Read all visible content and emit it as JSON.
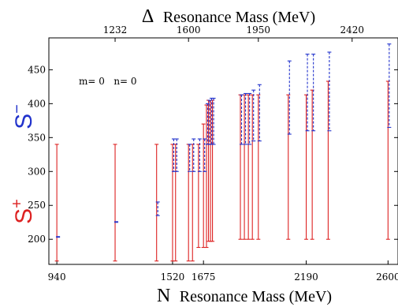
{
  "chart_data": {
    "type": "errorbar",
    "top_axis_title": {
      "symbol": "Δ",
      "text": "Resonance Mass (MeV)"
    },
    "bottom_axis_title": {
      "symbol": "N",
      "text": "Resonance Mass (MeV)"
    },
    "ylabel_plus": {
      "base": "S",
      "sup": "+"
    },
    "ylabel_minus": {
      "base": "S",
      "sup": "−"
    },
    "annotation": "m= 0   n= 0",
    "xlim": [
      900,
      2650
    ],
    "ylim": [
      163,
      497
    ],
    "bottom_ticks": [
      940,
      1520,
      1675,
      2190,
      2600
    ],
    "top_ticks": [
      1232,
      1600,
      1950,
      2420
    ],
    "y_ticks": [
      200,
      250,
      300,
      350,
      400,
      450
    ],
    "colors": {
      "plus": "#dd2222",
      "minus": "#2233cc",
      "axes": "#000000"
    },
    "series": [
      {
        "name": "S+",
        "style": "solid",
        "bars": [
          {
            "x": 940,
            "low": 168,
            "high": 340
          },
          {
            "x": 1232,
            "low": 168,
            "high": 340
          },
          {
            "x": 1440,
            "low": 168,
            "high": 340
          },
          {
            "x": 1520,
            "low": 168,
            "high": 340
          },
          {
            "x": 1535,
            "low": 168,
            "high": 340
          },
          {
            "x": 1600,
            "low": 168,
            "high": 340
          },
          {
            "x": 1620,
            "low": 168,
            "high": 340
          },
          {
            "x": 1650,
            "low": 188,
            "high": 340
          },
          {
            "x": 1675,
            "low": 188,
            "high": 370
          },
          {
            "x": 1690,
            "low": 188,
            "high": 398
          },
          {
            "x": 1700,
            "low": 197,
            "high": 405
          },
          {
            "x": 1710,
            "low": 197,
            "high": 405
          },
          {
            "x": 1720,
            "low": 197,
            "high": 405
          },
          {
            "x": 1860,
            "low": 200,
            "high": 413
          },
          {
            "x": 1880,
            "low": 200,
            "high": 413
          },
          {
            "x": 1900,
            "low": 200,
            "high": 413
          },
          {
            "x": 1920,
            "low": 200,
            "high": 413
          },
          {
            "x": 1950,
            "low": 200,
            "high": 413
          },
          {
            "x": 2100,
            "low": 200,
            "high": 413
          },
          {
            "x": 2190,
            "low": 200,
            "high": 413
          },
          {
            "x": 2220,
            "low": 200,
            "high": 420
          },
          {
            "x": 2300,
            "low": 200,
            "high": 433
          },
          {
            "x": 2600,
            "low": 200,
            "high": 433
          }
        ]
      },
      {
        "name": "S−",
        "style": "dashed",
        "bars": [
          {
            "x": 940,
            "low": 203,
            "high": 204
          },
          {
            "x": 1232,
            "low": 225,
            "high": 226
          },
          {
            "x": 1440,
            "low": 235,
            "high": 255
          },
          {
            "x": 1520,
            "low": 300,
            "high": 348
          },
          {
            "x": 1535,
            "low": 300,
            "high": 348
          },
          {
            "x": 1600,
            "low": 300,
            "high": 340
          },
          {
            "x": 1620,
            "low": 300,
            "high": 348
          },
          {
            "x": 1650,
            "low": 300,
            "high": 348
          },
          {
            "x": 1675,
            "low": 300,
            "high": 348
          },
          {
            "x": 1690,
            "low": 340,
            "high": 400
          },
          {
            "x": 1700,
            "low": 340,
            "high": 405
          },
          {
            "x": 1710,
            "low": 340,
            "high": 408
          },
          {
            "x": 1720,
            "low": 340,
            "high": 408
          },
          {
            "x": 1860,
            "low": 340,
            "high": 413
          },
          {
            "x": 1880,
            "low": 340,
            "high": 415
          },
          {
            "x": 1900,
            "low": 340,
            "high": 415
          },
          {
            "x": 1920,
            "low": 345,
            "high": 420
          },
          {
            "x": 1950,
            "low": 345,
            "high": 428
          },
          {
            "x": 2100,
            "low": 355,
            "high": 463
          },
          {
            "x": 2190,
            "low": 360,
            "high": 473
          },
          {
            "x": 2220,
            "low": 360,
            "high": 473
          },
          {
            "x": 2300,
            "low": 360,
            "high": 476
          },
          {
            "x": 2600,
            "low": 365,
            "high": 488
          }
        ]
      }
    ]
  }
}
